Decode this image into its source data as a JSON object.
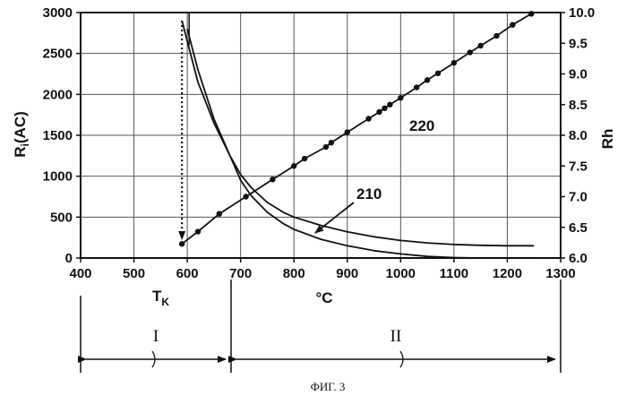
{
  "figure_caption": "ФИГ. 3",
  "chart_data": {
    "type": "line",
    "xlabel": "°C",
    "ylabel_left": "Ri(AC)",
    "ylabel_left_main": "R",
    "ylabel_left_sub": "i",
    "ylabel_left_tail": "(AC)",
    "ylabel_right": "Rh",
    "xlim": [
      400,
      1300
    ],
    "ylim_left": [
      0,
      3000
    ],
    "ylim_right": [
      6.0,
      10.0
    ],
    "grid": true,
    "x_ticks": [
      400,
      500,
      600,
      700,
      800,
      900,
      1000,
      1100,
      1200,
      1300
    ],
    "y_left_ticks": [
      0,
      500,
      1000,
      1500,
      2000,
      2500,
      3000
    ],
    "y_right_ticks": [
      "6.0",
      "6.5",
      "7.0",
      "7.5",
      "8.0",
      "8.5",
      "9.0",
      "9.5",
      "10.0"
    ],
    "series": [
      {
        "name": "210",
        "axis": "left",
        "points": [
          [
            590,
            2900
          ],
          [
            620,
            2150
          ],
          [
            650,
            1650
          ],
          [
            680,
            1250
          ],
          [
            700,
            1020
          ],
          [
            720,
            860
          ],
          [
            750,
            680
          ],
          [
            780,
            560
          ],
          [
            800,
            500
          ],
          [
            850,
            400
          ],
          [
            900,
            320
          ],
          [
            950,
            260
          ],
          [
            1000,
            215
          ],
          [
            1050,
            185
          ],
          [
            1100,
            165
          ],
          [
            1150,
            155
          ],
          [
            1200,
            150
          ],
          [
            1250,
            150
          ]
        ]
      },
      {
        "name": "",
        "axis": "left",
        "points": [
          [
            600,
            2800
          ],
          [
            620,
            2300
          ],
          [
            650,
            1700
          ],
          [
            680,
            1250
          ],
          [
            700,
            950
          ],
          [
            720,
            760
          ],
          [
            750,
            560
          ],
          [
            780,
            420
          ],
          [
            800,
            350
          ],
          [
            850,
            230
          ],
          [
            900,
            150
          ],
          [
            950,
            90
          ],
          [
            1000,
            50
          ],
          [
            1050,
            20
          ],
          [
            1100,
            5
          ],
          [
            1150,
            0
          ],
          [
            1200,
            0
          ],
          [
            1250,
            0
          ]
        ]
      },
      {
        "name": "220",
        "axis": "right",
        "points": [
          [
            590,
            6.23
          ],
          [
            620,
            6.43
          ],
          [
            660,
            6.72
          ],
          [
            710,
            7.0
          ],
          [
            760,
            7.28
          ],
          [
            800,
            7.5
          ],
          [
            820,
            7.62
          ],
          [
            860,
            7.81
          ],
          [
            870,
            7.88
          ],
          [
            900,
            8.05
          ],
          [
            940,
            8.27
          ],
          [
            960,
            8.38
          ],
          [
            970,
            8.44
          ],
          [
            980,
            8.5
          ],
          [
            1000,
            8.61
          ],
          [
            1030,
            8.78
          ],
          [
            1050,
            8.9
          ],
          [
            1070,
            9.01
          ],
          [
            1100,
            9.18
          ],
          [
            1130,
            9.35
          ],
          [
            1150,
            9.46
          ],
          [
            1180,
            9.62
          ],
          [
            1210,
            9.8
          ],
          [
            1245,
            9.98
          ]
        ]
      }
    ],
    "annotations": {
      "curve_210": "210",
      "line_220": "220",
      "tk_main": "T",
      "tk_sub": "K",
      "tk_value": 590,
      "region_1": "I",
      "region_2": "II",
      "region_boundary": 670
    }
  }
}
